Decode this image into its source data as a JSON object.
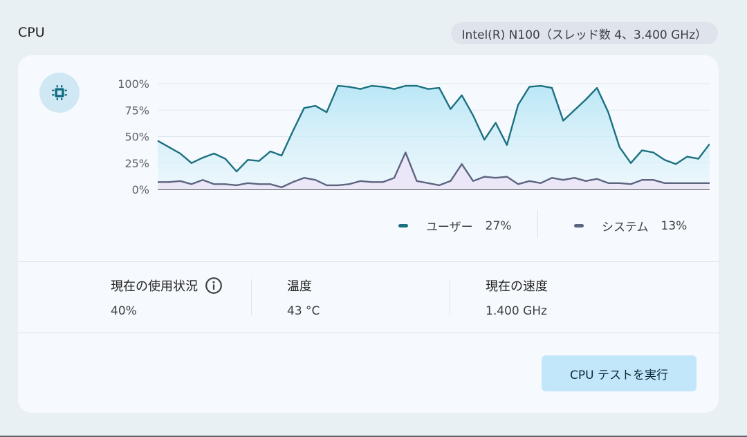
{
  "section": {
    "title": "CPU",
    "cpu_info": "Intel(R) N100（スレッド数 4、3.400 GHz）"
  },
  "colors": {
    "user": "#1b7080",
    "system": "#5c6480",
    "user_fill_top": "#b8e6f6",
    "system_fill": "#ebe6f7"
  },
  "chart_data": {
    "type": "area",
    "y_ticks": [
      "100%",
      "75%",
      "50%",
      "25%",
      "0%"
    ],
    "ylim": [
      0,
      100
    ],
    "grid": true,
    "series": [
      {
        "name": "ユーザー",
        "values": [
          46,
          40,
          34,
          25,
          30,
          34,
          29,
          17,
          28,
          27,
          36,
          32,
          55,
          77,
          79,
          73,
          98,
          97,
          95,
          98,
          97,
          95,
          98,
          98,
          95,
          96,
          76,
          89,
          70,
          47,
          63,
          42,
          80,
          97,
          98,
          96,
          65,
          75,
          85,
          96,
          73,
          40,
          25,
          37,
          35,
          28,
          24,
          31,
          29,
          43
        ]
      },
      {
        "name": "システム",
        "values": [
          7,
          7,
          8,
          5,
          9,
          5,
          5,
          4,
          6,
          5,
          5,
          2,
          7,
          11,
          9,
          4,
          4,
          5,
          8,
          7,
          7,
          11,
          35,
          8,
          6,
          4,
          8,
          24,
          8,
          12,
          11,
          12,
          5,
          8,
          6,
          11,
          9,
          11,
          8,
          10,
          6,
          6,
          5,
          9,
          9,
          6,
          6,
          6,
          6,
          6
        ]
      }
    ]
  },
  "legend": {
    "user_label": "ユーザー",
    "user_value": "27%",
    "system_label": "システム",
    "system_value": "13%"
  },
  "stats": {
    "usage_label": "現在の使用状況",
    "usage_value": "40%",
    "temp_label": "温度",
    "temp_value": "43 °C",
    "speed_label": "現在の速度",
    "speed_value": "1.400 GHz"
  },
  "actions": {
    "run_test_label": "CPU テストを実行"
  },
  "icons": {
    "header": "cpu-chip-icon",
    "info": "info-icon"
  }
}
